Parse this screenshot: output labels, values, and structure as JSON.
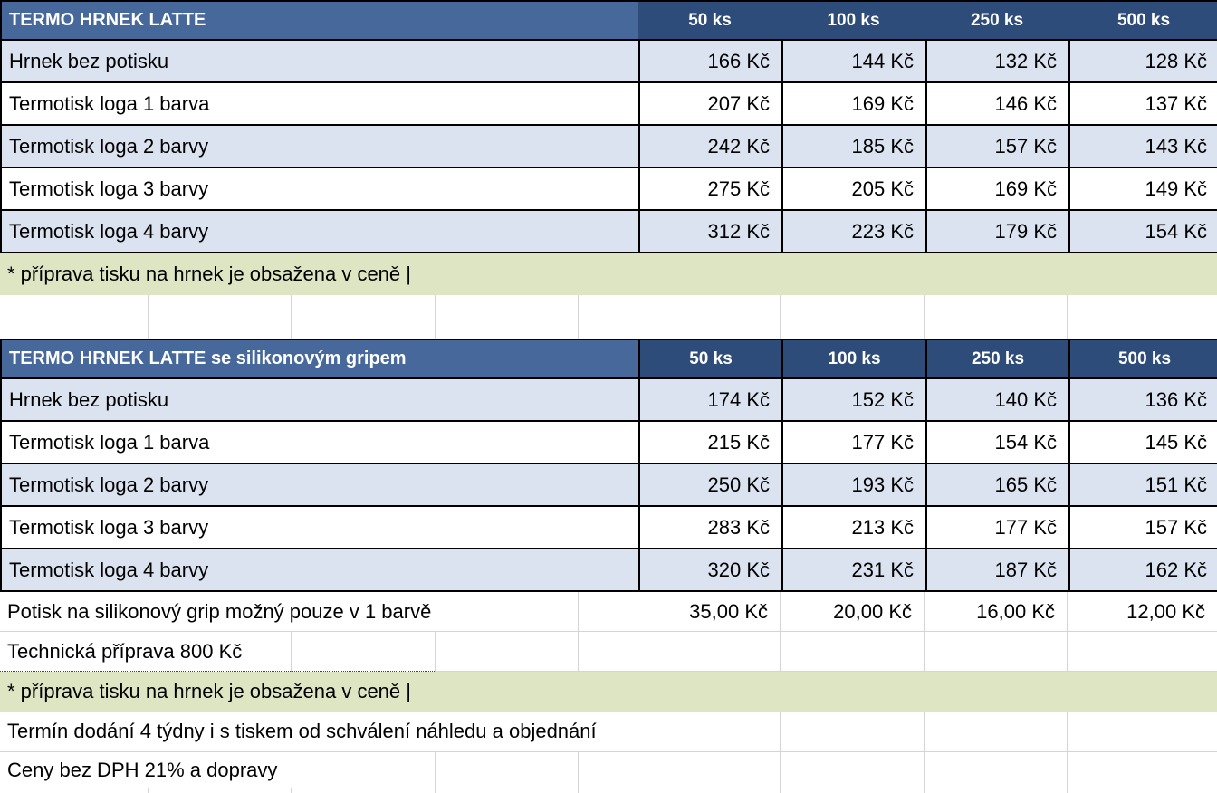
{
  "colors": {
    "title_header_bg": "#46689B",
    "quantity_header_bg": "#2E4C79",
    "alt_row_bg": "#DBE3F0",
    "note_row_bg": "#DDE5C3",
    "header_text": "#FFFFFF",
    "body_text": "#000000",
    "table_border": "#000000",
    "gridline": "#D5D5D5"
  },
  "quantity_headers": [
    "50 ks",
    "100 ks",
    "250 ks",
    "500 ks"
  ],
  "table1": {
    "title": "TERMO HRNEK LATTE",
    "rows": [
      {
        "label": "Hrnek bez potisku",
        "prices": [
          "166 Kč",
          "144 Kč",
          "132 Kč",
          "128 Kč"
        ]
      },
      {
        "label": "Termotisk loga 1 barva",
        "prices": [
          "207 Kč",
          "169 Kč",
          "146 Kč",
          "137 Kč"
        ]
      },
      {
        "label": "Termotisk loga 2 barvy",
        "prices": [
          "242 Kč",
          "185 Kč",
          "157 Kč",
          "143 Kč"
        ]
      },
      {
        "label": "Termotisk loga 3 barvy",
        "prices": [
          "275 Kč",
          "205 Kč",
          "169 Kč",
          "149 Kč"
        ]
      },
      {
        "label": "Termotisk loga 4 barvy",
        "prices": [
          "312 Kč",
          "223 Kč",
          "179 Kč",
          "154 Kč"
        ]
      }
    ],
    "note": "* příprava tisku na hrnek je obsažena v ceně |"
  },
  "table2": {
    "title": "TERMO HRNEK LATTE se silikonovým gripem",
    "rows": [
      {
        "label": "Hrnek bez potisku",
        "prices": [
          "174 Kč",
          "152 Kč",
          "140 Kč",
          "136 Kč"
        ]
      },
      {
        "label": "Termotisk loga 1 barva",
        "prices": [
          "215 Kč",
          "177 Kč",
          "154 Kč",
          "145 Kč"
        ]
      },
      {
        "label": "Termotisk loga 2 barvy",
        "prices": [
          "250 Kč",
          "193 Kč",
          "165 Kč",
          "151 Kč"
        ]
      },
      {
        "label": "Termotisk loga 3 barvy",
        "prices": [
          "283 Kč",
          "213 Kč",
          "177 Kč",
          "157 Kč"
        ]
      },
      {
        "label": "Termotisk loga 4 barvy",
        "prices": [
          "320 Kč",
          "231 Kč",
          "187 Kč",
          "162 Kč"
        ]
      }
    ],
    "grip_print_row": {
      "label": "Potisk na silikonový grip možný pouze v 1 barvě",
      "prices": [
        "35,00 Kč",
        "20,00 Kč",
        "16,00 Kč",
        "12,00 Kč"
      ]
    },
    "tech_prep_row": {
      "label": "Technická příprava 800 Kč"
    },
    "note": "* příprava tisku na hrnek je obsažena v ceně |",
    "delivery_row": {
      "label": "Termín dodání 4 týdny i s tiskem od schválení náhledu a objednání"
    },
    "vat_row": {
      "label": "Ceny bez DPH 21% a dopravy"
    }
  }
}
